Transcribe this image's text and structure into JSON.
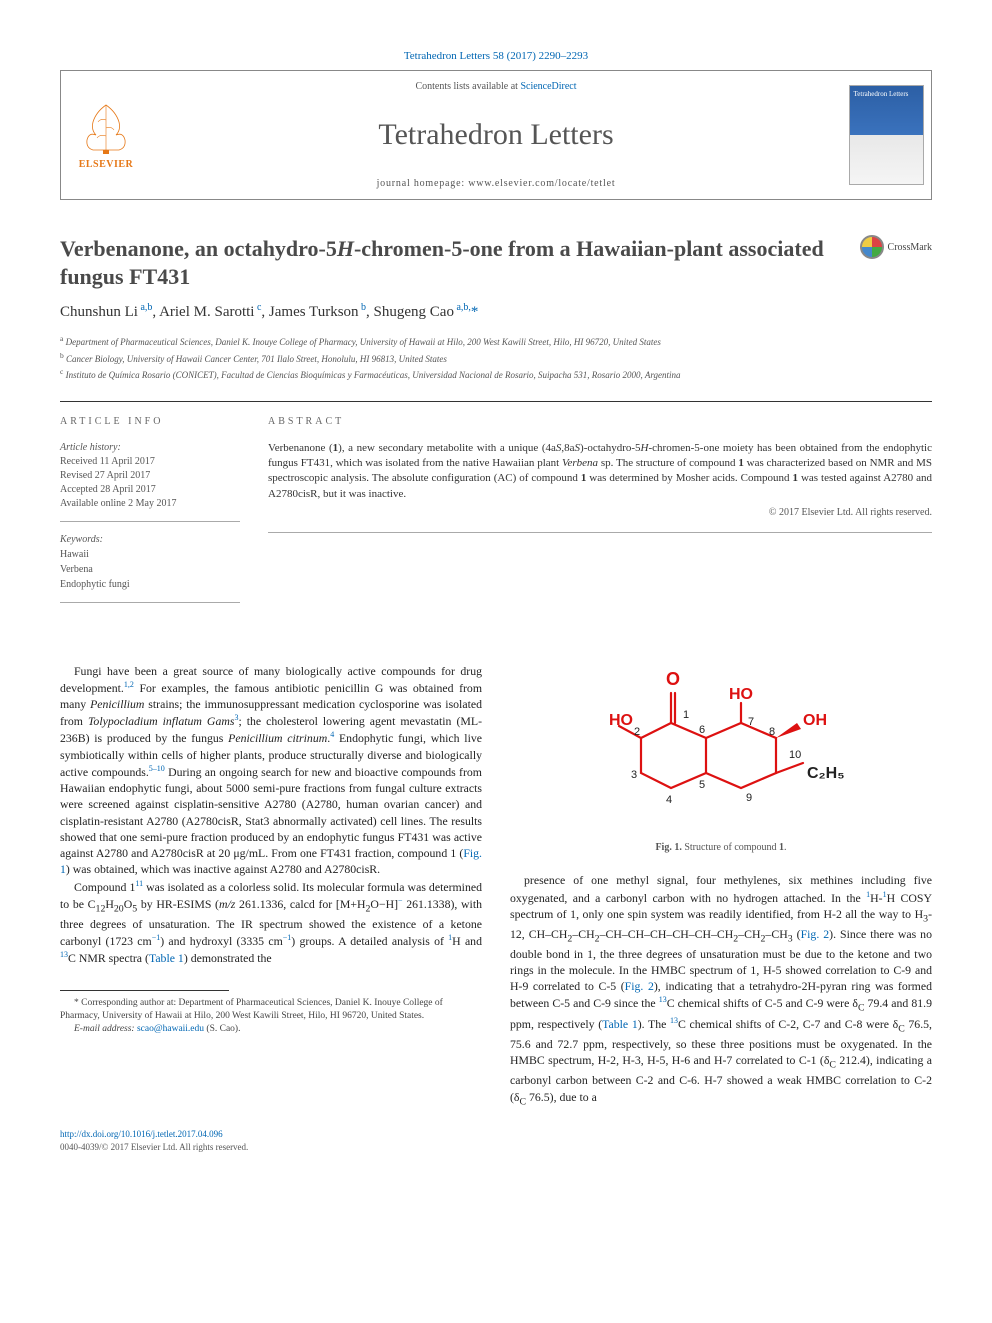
{
  "citation": "Tetrahedron Letters 58 (2017) 2290–2293",
  "header": {
    "contents_prefix": "Contents lists available at ",
    "contents_link": "ScienceDirect",
    "journal_name": "Tetrahedron Letters",
    "homepage_prefix": "journal homepage: ",
    "homepage_url": "www.elsevier.com/locate/tetlet",
    "publisher_name": "ELSEVIER",
    "cover_label": "Tetrahedron Letters"
  },
  "crossmark": "CrossMark",
  "title_html": "Verbenanone, an octahydro-5<span class='italic'>H</span>-chromen-5-one from a Hawaiian-plant associated fungus FT431",
  "authors_html": "Chunshun Li<sup> a,b</sup>, Ariel M. Sarotti<sup> c</sup>, James Turkson<sup> b</sup>, Shugeng Cao<sup> a,b,</sup><a href='#'>*</a>",
  "affiliations": [
    {
      "sup": "a",
      "text": "Department of Pharmaceutical Sciences, Daniel K. Inouye College of Pharmacy, University of Hawaii at Hilo, 200 West Kawili Street, Hilo, HI 96720, United States"
    },
    {
      "sup": "b",
      "text": "Cancer Biology, University of Hawaii Cancer Center, 701 Ilalo Street, Honolulu, HI 96813, United States"
    },
    {
      "sup": "c",
      "text": "Instituto de Química Rosario (CONICET), Facultad de Ciencias Bioquímicas y Farmacéuticas, Universidad Nacional de Rosario, Suipacha 531, Rosario 2000, Argentina"
    }
  ],
  "info": {
    "label": "ARTICLE INFO",
    "history_label": "Article history:",
    "history": [
      "Received 11 April 2017",
      "Revised 27 April 2017",
      "Accepted 28 April 2017",
      "Available online 2 May 2017"
    ],
    "keywords_label": "Keywords:",
    "keywords": [
      "Hawaii",
      "Verbena",
      "Endophytic fungi"
    ]
  },
  "abstract": {
    "label": "ABSTRACT",
    "text_html": "Verbenanone (<span class='bold'>1</span>), a new secondary metabolite with a unique (4a<span class='italic'>S</span>,8a<span class='italic'>S</span>)-octahydro-5<span class='italic'>H</span>-chromen-5-one moiety has been obtained from the endophytic fungus FT431, which was isolated from the native Hawaiian plant <span class='italic'>Verbena</span> sp. The structure of compound <span class='bold'>1</span> was characterized based on NMR and MS spectroscopic analysis. The absolute configuration (AC) of compound <span class='bold'>1</span> was determined by Mosher acids. Compound <span class='bold'>1</span> was tested against A2780 and A2780cisR, but it was inactive.",
    "copyright": "© 2017 Elsevier Ltd. All rights reserved."
  },
  "body": {
    "left": [
      "Fungi have been a great source of many biologically active compounds for drug development.<sup>1,2</sup> For examples, the famous antibiotic penicillin G was obtained from many <span class='italic'>Penicillium</span> strains; the immunosuppressant medication cyclosporine was isolated from <span class='italic'>Tolypocladium inflatum Gams</span><sup>3</sup>; the cholesterol lowering agent mevastatin (ML-236B) is produced by the fungus <span class='italic'>Penicillium citrinum</span>.<sup>4</sup> Endophytic fungi, which live symbiotically within cells of higher plants, produce structurally diverse and biologically active compounds.<sup>5–10</sup> During an ongoing search for new and bioactive compounds from Hawaiian endophytic fungi, about 5000 semi-pure fractions from fungal culture extracts were screened against cisplatin-sensitive A2780 (A2780, human ovarian cancer) and cisplatin-resistant A2780 (A2780cisR, Stat3 abnormally activated) cell lines. The results showed that one semi-pure fraction produced by an endophytic fungus FT431 was active against A2780 and A2780cisR at 20 μg/mL. From one FT431 fraction, compound <span class='bold'>1</span> (<a href='#'>Fig. 1</a>) was obtained, which was inactive against A2780 and A2780cisR.",
      "Compound <span class='bold'>1</span><sup>11</sup> was isolated as a colorless solid. Its molecular formula was determined to be C<sub>12</sub>H<sub>20</sub>O<sub>5</sub> by HR-ESIMS (<span class='italic'>m/z</span> 261.1336, calcd for [M+H<sub>2</sub>O−H]<sup>−</sup> 261.1338), with three degrees of unsaturation. The IR spectrum showed the existence of a ketone carbonyl (1723 cm<sup>−1</sup>) and hydroxyl (3335 cm<sup>−1</sup>) groups. A detailed analysis of <sup>1</sup>H and <sup>13</sup>C NMR spectra (<a href='#'>Table 1</a>) demonstrated the"
    ],
    "right": [
      "presence of one methyl signal, four methylenes, six methines including five oxygenated, and a carbonyl carbon with no hydrogen attached. In the <sup>1</sup>H-<sup>1</sup>H COSY spectrum of <span class='bold'>1</span>, only one spin system was readily identified, from H-2 all the way to H<sub>3</sub>-12, CH–CH<sub>2</sub>–CH<sub>2</sub>–CH–CH–CH–CH–CH–CH<sub>2</sub>–CH<sub>2</sub>–CH<sub>3</sub> (<a href='#'>Fig. 2</a>). Since there was no double bond in <span class='bold'>1</span>, the three degrees of unsaturation must be due to the ketone and two rings in the molecule. In the HMBC spectrum of <span class='bold'>1</span>, H-5 showed correlation to C-9 and H-9 correlated to C-5 (<a href='#'>Fig. 2</a>), indicating that a tetrahydro-2H-pyran ring was formed between C-5 and C-9 since the <sup>13</sup>C chemical shifts of C-5 and C-9 were δ<sub>C</sub> 79.4 and 81.9 ppm, respectively (<a href='#'>Table 1</a>). The <sup>13</sup>C chemical shifts of C-2, C-7 and C-8 were δ<sub>C</sub> 76.5, 75.6 and 72.7 ppm, respectively, so these three positions must be oxygenated. In the HMBC spectrum, H-2, H-3, H-5, H-6 and H-7 correlated to C-1 (δ<sub>C</sub> 212.4), indicating a carbonyl carbon between C-2 and C-6. H-7 showed a weak HMBC correlation to C-2 (δ<sub>C</sub> 76.5), due to a"
    ]
  },
  "figure1": {
    "caption_html": "<span class='bold'>Fig. 1.</span> Structure of compound <span class='bold'>1</span>.",
    "labels": {
      "O": "O",
      "HO1": "HO",
      "HO2": "HO",
      "OH": "OH",
      "C2H5": "C₂H₅"
    },
    "atom_numbers": [
      "1",
      "2",
      "3",
      "4",
      "5",
      "6",
      "7",
      "8",
      "9",
      "10"
    ],
    "colors": {
      "bond": "#d11",
      "oxygen": "#d11",
      "text": "#d11"
    }
  },
  "footnote": {
    "corr_html": "* Corresponding author at: Department of Pharmaceutical Sciences, Daniel K. Inouye College of Pharmacy, University of Hawaii at Hilo, 200 West Kawili Street, Hilo, HI 96720, United States.",
    "email_label": "E-mail address:",
    "email": "scao@hawaii.edu",
    "email_suffix": "(S. Cao)."
  },
  "footer": {
    "doi": "http://dx.doi.org/10.1016/j.tetlet.2017.04.096",
    "issn_copyright": "0040-4039/© 2017 Elsevier Ltd. All rights reserved."
  }
}
